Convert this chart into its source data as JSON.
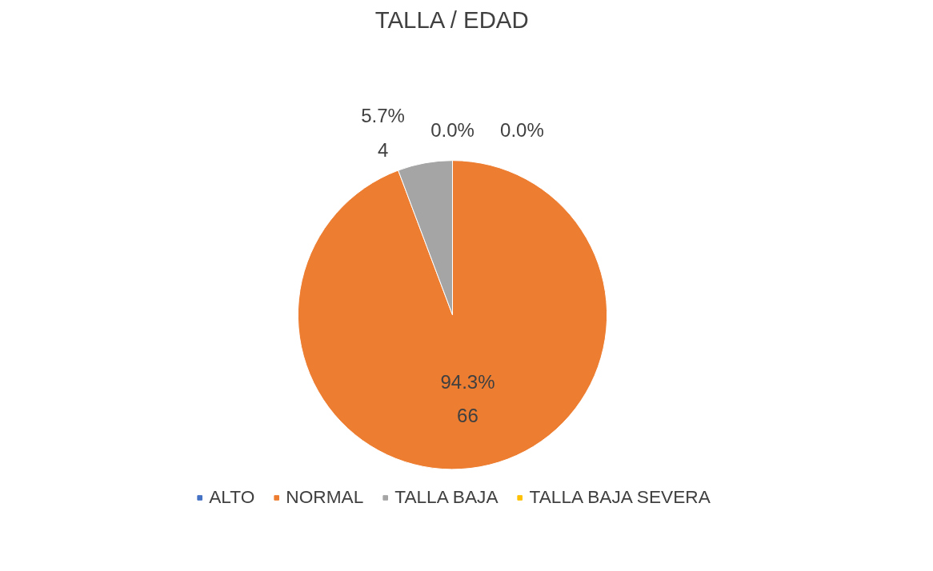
{
  "chart_data": {
    "type": "pie",
    "title": "TALLA / EDAD",
    "categories": [
      "ALTO",
      "NORMAL",
      "TALLA BAJA",
      "TALLA BAJA SEVERA"
    ],
    "values": [
      0,
      66,
      4,
      0
    ],
    "colors": [
      "#4472c4",
      "#ed7d31",
      "#a5a5a5",
      "#ffc000"
    ],
    "value_labels": [
      "0.0%",
      "94.3%\n66",
      "5.7%\n4",
      "0.0%"
    ],
    "legend": "bottom"
  }
}
